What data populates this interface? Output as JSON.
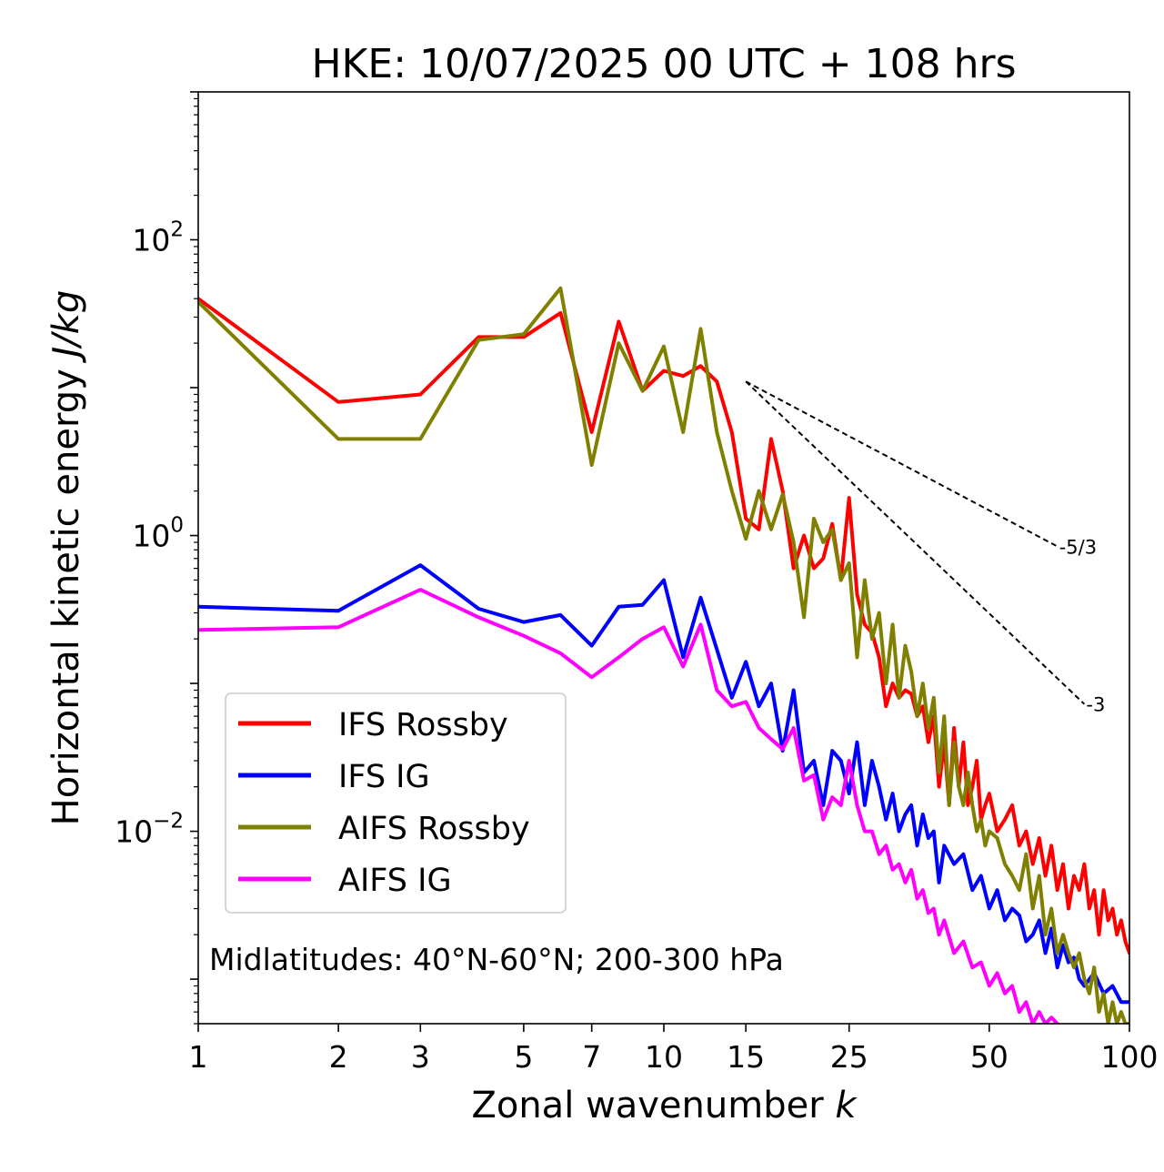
{
  "chart_data": {
    "type": "line",
    "title": "HKE: 10/07/2025 00 UTC + 108 hrs",
    "xlabel_text": "Zonal wavenumber ",
    "xlabel_italic": "k",
    "ylabel_text": "Horizontal kinetic energy ",
    "ylabel_italic": "J/kg",
    "xscale": "log",
    "yscale": "log",
    "xlim": [
      1,
      100
    ],
    "ylim": [
      0.0005,
      1000
    ],
    "xticks": [
      1,
      2,
      3,
      5,
      7,
      10,
      15,
      25,
      50,
      100
    ],
    "xtick_labels": [
      "1",
      "2",
      "3",
      "5",
      "7",
      "10",
      "15",
      "25",
      "50",
      "100"
    ],
    "yticks": [
      {
        "value": 100,
        "base": "10",
        "exp": "2"
      },
      {
        "value": 1,
        "base": "10",
        "exp": "0"
      },
      {
        "value": 0.01,
        "base": "10",
        "exp": "−2"
      }
    ],
    "legend_position": "lower-left",
    "annotation": "Midlatitudes: 40°N-60°N; 200-300 hPa",
    "reference_lines": [
      {
        "label": "-5/3",
        "slope": -1.6667,
        "x0": 15,
        "y0": 11,
        "x1": 70
      },
      {
        "label": "-3",
        "slope": -3,
        "x0": 15,
        "y0": 11,
        "x1": 80
      }
    ],
    "series": [
      {
        "name": "IFS Rossby",
        "color": "#ff0000",
        "x": [
          1,
          2,
          3,
          4,
          5,
          6,
          7,
          8,
          9,
          10,
          11,
          12,
          13,
          14,
          15,
          16,
          17,
          18,
          19,
          20,
          21,
          22,
          23,
          24,
          25,
          26,
          27,
          28,
          29,
          30,
          31,
          32,
          33,
          34,
          35,
          36,
          37,
          38,
          39,
          40,
          41,
          42,
          43,
          44,
          45,
          46,
          47,
          48,
          49,
          50,
          52,
          54,
          56,
          58,
          60,
          62,
          64,
          66,
          68,
          70,
          72,
          74,
          76,
          78,
          80,
          82,
          84,
          86,
          88,
          90,
          92,
          94,
          96,
          98,
          100
        ],
        "values": [
          40,
          8,
          9,
          22,
          22,
          32,
          5,
          28,
          9.5,
          13,
          12,
          14,
          11,
          5,
          1.3,
          1.1,
          4.5,
          2,
          0.6,
          1.0,
          0.6,
          0.7,
          1.2,
          0.5,
          1.8,
          0.4,
          0.25,
          0.22,
          0.15,
          0.07,
          0.1,
          0.08,
          0.09,
          0.085,
          0.06,
          0.07,
          0.04,
          0.06,
          0.02,
          0.04,
          0.015,
          0.05,
          0.02,
          0.04,
          0.015,
          0.02,
          0.03,
          0.012,
          0.015,
          0.018,
          0.01,
          0.012,
          0.015,
          0.008,
          0.01,
          0.006,
          0.009,
          0.005,
          0.008,
          0.004,
          0.006,
          0.003,
          0.005,
          0.004,
          0.006,
          0.003,
          0.004,
          0.002,
          0.004,
          0.0025,
          0.003,
          0.002,
          0.0025,
          0.0018,
          0.0015
        ]
      },
      {
        "name": "IFS IG",
        "color": "#0000ff",
        "x": [
          1,
          2,
          3,
          4,
          5,
          6,
          7,
          8,
          9,
          10,
          11,
          12,
          13,
          14,
          15,
          16,
          17,
          18,
          19,
          20,
          21,
          22,
          23,
          24,
          25,
          26,
          27,
          28,
          29,
          30,
          31,
          32,
          33,
          34,
          35,
          36,
          37,
          38,
          39,
          40,
          42,
          44,
          46,
          48,
          50,
          52,
          54,
          56,
          58,
          60,
          62,
          64,
          66,
          68,
          70,
          72,
          74,
          76,
          78,
          80,
          84,
          88,
          92,
          96,
          100
        ],
        "values": [
          0.33,
          0.31,
          0.63,
          0.32,
          0.26,
          0.29,
          0.18,
          0.33,
          0.34,
          0.5,
          0.15,
          0.38,
          0.17,
          0.08,
          0.14,
          0.07,
          0.1,
          0.035,
          0.09,
          0.025,
          0.03,
          0.015,
          0.035,
          0.03,
          0.018,
          0.04,
          0.015,
          0.03,
          0.02,
          0.012,
          0.018,
          0.01,
          0.013,
          0.015,
          0.008,
          0.013,
          0.009,
          0.01,
          0.0045,
          0.008,
          0.006,
          0.007,
          0.004,
          0.005,
          0.003,
          0.004,
          0.0025,
          0.003,
          0.0027,
          0.0018,
          0.002,
          0.0025,
          0.0015,
          0.0022,
          0.0012,
          0.0017,
          0.0013,
          0.0014,
          0.001,
          0.0009,
          0.0011,
          0.0008,
          0.0009,
          0.0007,
          0.0007
        ]
      },
      {
        "name": "AIFS Rossby",
        "color": "#808000",
        "x": [
          1,
          2,
          3,
          4,
          5,
          6,
          7,
          8,
          9,
          10,
          11,
          12,
          13,
          14,
          15,
          16,
          17,
          18,
          19,
          20,
          21,
          22,
          23,
          24,
          25,
          26,
          27,
          28,
          29,
          30,
          31,
          32,
          33,
          34,
          35,
          36,
          37,
          38,
          39,
          40,
          41,
          42,
          43,
          44,
          45,
          46,
          47,
          48,
          49,
          50,
          52,
          54,
          56,
          58,
          60,
          62,
          64,
          66,
          68,
          70,
          72,
          74,
          76,
          78,
          80,
          82,
          84,
          86,
          88,
          90,
          92,
          94,
          96,
          98,
          100
        ],
        "values": [
          38,
          4.5,
          4.5,
          21,
          23,
          47,
          3,
          20,
          9.5,
          19,
          5,
          25,
          5,
          2,
          0.95,
          2,
          1.1,
          1.9,
          0.9,
          0.28,
          1.3,
          0.9,
          1.1,
          0.5,
          0.65,
          0.15,
          0.5,
          0.2,
          0.3,
          0.1,
          0.25,
          0.08,
          0.18,
          0.12,
          0.06,
          0.1,
          0.05,
          0.08,
          0.025,
          0.06,
          0.015,
          0.04,
          0.02,
          0.015,
          0.025,
          0.015,
          0.01,
          0.012,
          0.008,
          0.01,
          0.009,
          0.006,
          0.005,
          0.004,
          0.007,
          0.003,
          0.005,
          0.002,
          0.003,
          0.0015,
          0.002,
          0.0015,
          0.0012,
          0.0015,
          0.001,
          0.0008,
          0.0012,
          0.0006,
          0.0008,
          0.0005,
          0.0007,
          0.0005,
          0.0006,
          0.0005,
          0.0005
        ]
      },
      {
        "name": "AIFS IG",
        "color": "#ff00ff",
        "x": [
          1,
          2,
          3,
          4,
          5,
          6,
          7,
          8,
          9,
          10,
          11,
          12,
          13,
          14,
          15,
          16,
          17,
          18,
          19,
          20,
          21,
          22,
          23,
          24,
          25,
          26,
          27,
          28,
          29,
          30,
          31,
          32,
          33,
          34,
          35,
          36,
          37,
          38,
          39,
          40,
          42,
          44,
          46,
          48,
          50,
          52,
          54,
          56,
          58,
          60,
          62,
          64,
          66,
          68,
          70
        ],
        "values": [
          0.23,
          0.24,
          0.43,
          0.28,
          0.21,
          0.16,
          0.11,
          0.15,
          0.2,
          0.24,
          0.13,
          0.25,
          0.09,
          0.07,
          0.075,
          0.05,
          0.042,
          0.036,
          0.05,
          0.022,
          0.024,
          0.012,
          0.017,
          0.015,
          0.03,
          0.015,
          0.01,
          0.01,
          0.007,
          0.008,
          0.0055,
          0.006,
          0.0045,
          0.0055,
          0.0035,
          0.004,
          0.0028,
          0.003,
          0.002,
          0.0025,
          0.0015,
          0.0018,
          0.0012,
          0.0013,
          0.0009,
          0.0011,
          0.0008,
          0.0009,
          0.0006,
          0.0007,
          0.0005,
          0.0006,
          0.0005,
          0.00055,
          0.0005
        ]
      }
    ]
  }
}
